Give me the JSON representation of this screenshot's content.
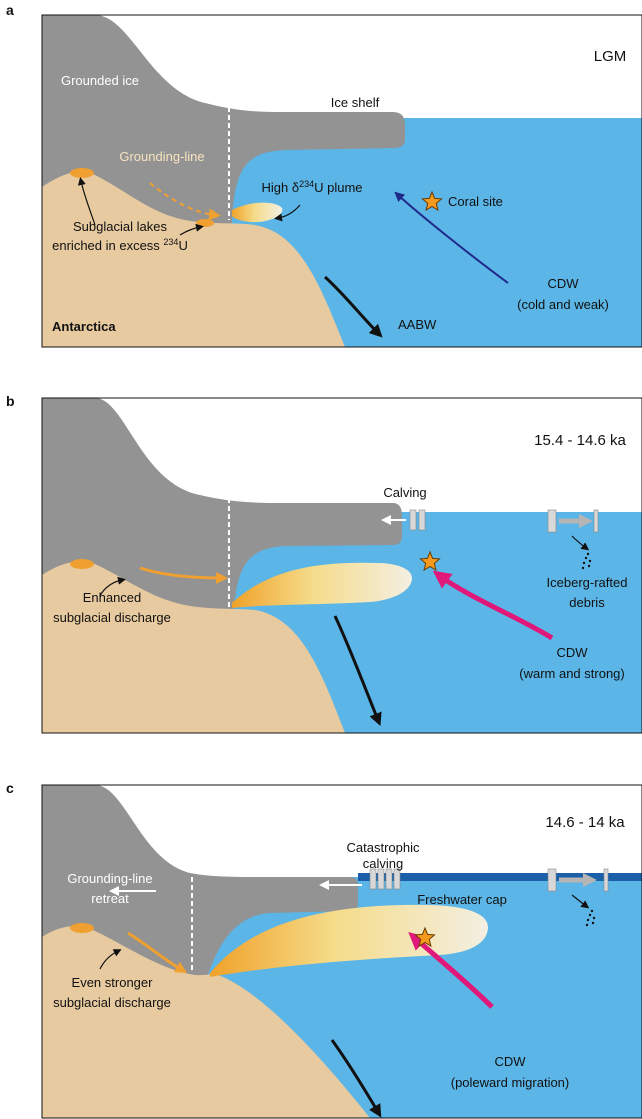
{
  "panels": [
    {
      "label": "a",
      "period": "LGM",
      "grounded_ice": "Grounded ice",
      "ice_shelf": "Ice shelf",
      "grounding_line": "Grounding-line",
      "plume": {
        "pre": "High δ",
        "sup": "234",
        "post": "U plume"
      },
      "coral_site": "Coral site",
      "lakes": [
        "Subglacial lakes",
        {
          "pre": "enriched in excess ",
          "sup": "234",
          "post": "U"
        }
      ],
      "cdw": [
        "CDW",
        "(cold and weak)"
      ],
      "continent": "Antarctica",
      "aabw": "AABW"
    },
    {
      "label": "b",
      "period": "15.4 - 14.6 ka",
      "calving": [
        "Calving"
      ],
      "debris": [
        "Iceberg-rafted",
        "debris"
      ],
      "discharge": [
        "Enhanced",
        "subglacial discharge"
      ],
      "cdw": [
        "CDW",
        "(warm and strong)"
      ]
    },
    {
      "label": "c",
      "period": "14.6 - 14 ka",
      "calving": [
        "Catastrophic",
        "calving"
      ],
      "retreat": [
        "Grounding-line",
        "retreat"
      ],
      "freshwater_cap": "Freshwater cap",
      "discharge": [
        "Even stronger",
        "subglacial discharge"
      ],
      "cdw": [
        "CDW",
        "(poleward migration)"
      ]
    }
  ]
}
